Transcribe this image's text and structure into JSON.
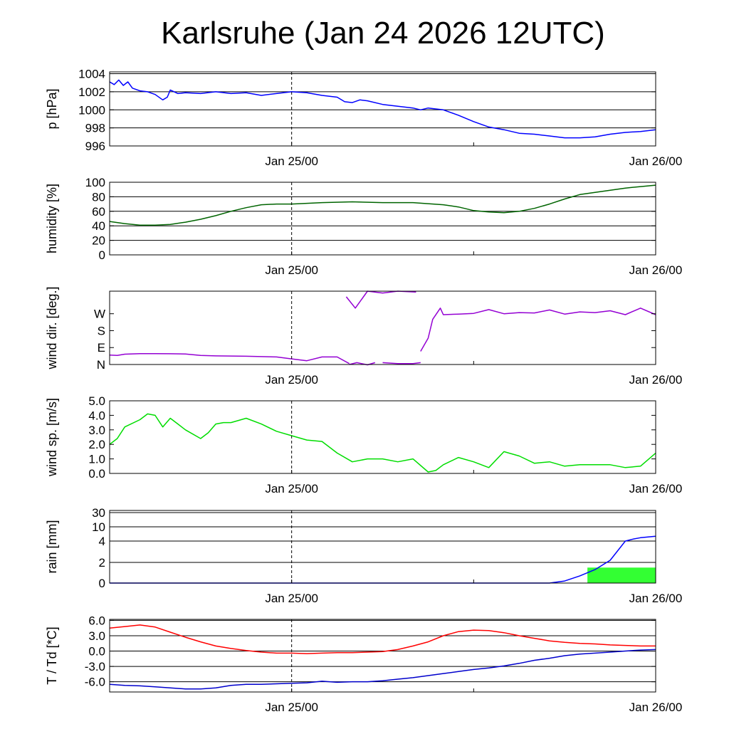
{
  "title": "Karlsruhe (Jan 24 2026 12UTC)",
  "chart_data": [
    {
      "type": "line",
      "ylabel": "p [hPa]",
      "x_tick_labels": [
        "Jan 25/00",
        "Jan 26/00"
      ],
      "xlim_hours": [
        0,
        36
      ],
      "ylim": [
        996,
        1004.2
      ],
      "yticks": [
        996,
        998,
        1000,
        1002,
        1004
      ],
      "ytick_labels": [
        "996",
        "998",
        "1000",
        "1002",
        "1004"
      ],
      "grid": true,
      "color": "#0000ff",
      "series": [
        {
          "x": [
            0,
            0.3,
            0.6,
            0.9,
            1.2,
            1.5,
            2,
            2.5,
            3,
            3.5,
            3.8,
            4,
            4.5,
            5,
            6,
            7,
            8,
            9,
            10,
            11,
            12,
            13,
            14,
            15,
            15.5,
            16,
            16.5,
            17,
            18,
            19,
            20,
            20.5,
            21,
            22,
            23,
            24,
            25,
            26,
            27,
            28,
            29,
            30,
            31,
            32,
            33,
            34,
            35,
            36
          ],
          "y": [
            1003.1,
            1002.8,
            1003.3,
            1002.7,
            1003.1,
            1002.4,
            1002.1,
            1002.0,
            1001.7,
            1001.1,
            1001.4,
            1002.2,
            1001.8,
            1001.9,
            1001.8,
            1002.0,
            1001.8,
            1001.9,
            1001.6,
            1001.8,
            1002.0,
            1001.9,
            1001.6,
            1001.4,
            1000.9,
            1000.8,
            1001.1,
            1001.0,
            1000.6,
            1000.4,
            1000.2,
            1000.0,
            1000.2,
            1000.0,
            999.4,
            998.7,
            998.1,
            997.8,
            997.4,
            997.3,
            997.1,
            996.9,
            996.9,
            997.0,
            997.3,
            997.5,
            997.6,
            997.8
          ]
        }
      ]
    },
    {
      "type": "line",
      "ylabel": "humidity [%]",
      "x_tick_labels": [
        "Jan 25/00",
        "Jan 26/00"
      ],
      "xlim_hours": [
        0,
        36
      ],
      "ylim": [
        0,
        100
      ],
      "yticks": [
        0,
        20,
        40,
        60,
        80,
        100
      ],
      "ytick_labels": [
        "0",
        "20",
        "40",
        "60",
        "80",
        "100"
      ],
      "grid": true,
      "color": "#006400",
      "series": [
        {
          "x": [
            0,
            1,
            2,
            3,
            4,
            5,
            6,
            7,
            8,
            9,
            10,
            11,
            12,
            14,
            16,
            18,
            20,
            22,
            23,
            24,
            25,
            26,
            27,
            28,
            29,
            30,
            31,
            32,
            33,
            34,
            35,
            36
          ],
          "y": [
            46,
            43,
            41,
            41,
            42,
            45,
            49,
            54,
            60,
            65,
            69,
            70,
            70,
            72,
            73,
            72,
            72,
            69,
            66,
            61,
            59,
            58,
            60,
            64,
            70,
            77,
            83,
            86,
            89,
            92,
            94,
            96
          ]
        }
      ]
    },
    {
      "type": "scatter",
      "ylabel": "wind dir. [deg.]",
      "x_tick_labels": [
        "Jan 25/00",
        "Jan 26/00"
      ],
      "xlim_hours": [
        0,
        36
      ],
      "ylim": [
        0,
        390
      ],
      "yticks": [
        0,
        90,
        180,
        270
      ],
      "ytick_labels": [
        "N",
        "E",
        "S",
        "W"
      ],
      "grid": false,
      "color": "#9400d3",
      "series": [
        {
          "x": [
            0,
            0.5,
            1,
            2,
            3,
            4,
            5,
            6,
            7,
            8,
            9,
            10,
            11,
            12,
            13,
            14,
            15,
            15.8
          ],
          "y": [
            50,
            48,
            55,
            58,
            58,
            57,
            56,
            48,
            46,
            45,
            44,
            42,
            40,
            30,
            20,
            40,
            40,
            5
          ]
        },
        {
          "x": [
            15.8,
            16.3,
            17,
            17.5
          ],
          "y": [
            0,
            10,
            -2,
            10
          ]
        },
        {
          "x": [
            18,
            19,
            20,
            20.5
          ],
          "y": [
            10,
            5,
            5,
            10
          ]
        },
        {
          "x": [
            15.6,
            16.2,
            17,
            18,
            19,
            20.2
          ],
          "y": [
            360,
            300,
            390,
            380,
            390,
            385
          ]
        },
        {
          "x": [
            20.5,
            21,
            21.3,
            21.8,
            22,
            23,
            24,
            25,
            26,
            27,
            28,
            29,
            30,
            31,
            32,
            33,
            34,
            35,
            36
          ],
          "y": [
            70,
            140,
            240,
            300,
            265,
            268,
            272,
            292,
            270,
            276,
            274,
            290,
            268,
            280,
            276,
            286,
            265,
            300,
            265
          ]
        }
      ]
    },
    {
      "type": "line",
      "ylabel": "wind sp. [m/s]",
      "x_tick_labels": [
        "Jan 25/00",
        "Jan 26/00"
      ],
      "xlim_hours": [
        0,
        36
      ],
      "ylim": [
        0,
        5
      ],
      "yticks": [
        0,
        1,
        2,
        3,
        4,
        5
      ],
      "ytick_labels": [
        "0.0",
        "1.0",
        "2.0",
        "3.0",
        "4.0",
        "5.0"
      ],
      "grid": false,
      "color": "#00dd00",
      "series": [
        {
          "x": [
            0,
            0.5,
            1,
            2,
            2.5,
            3,
            3.5,
            4,
            4.5,
            5,
            6,
            6.5,
            7,
            7.5,
            8,
            9,
            10,
            11,
            12,
            13,
            14,
            15,
            16,
            17,
            18,
            19,
            20,
            21,
            21.5,
            22,
            23,
            24,
            25,
            26,
            27,
            28,
            29,
            30,
            31,
            32,
            33,
            34,
            35,
            36
          ],
          "y": [
            2.0,
            2.4,
            3.2,
            3.7,
            4.1,
            4.0,
            3.2,
            3.8,
            3.4,
            3.0,
            2.4,
            2.8,
            3.4,
            3.5,
            3.5,
            3.8,
            3.4,
            2.9,
            2.6,
            2.3,
            2.2,
            1.4,
            0.8,
            1.0,
            1.0,
            0.8,
            1.0,
            0.1,
            0.2,
            0.6,
            1.1,
            0.8,
            0.4,
            1.5,
            1.2,
            0.7,
            0.8,
            0.5,
            0.6,
            0.6,
            0.6,
            0.4,
            0.5,
            1.4
          ]
        }
      ]
    },
    {
      "type": "line",
      "ylabel": "rain [mm]",
      "x_tick_labels": [
        "Jan 25/00",
        "Jan 26/00"
      ],
      "xlim_hours": [
        0,
        36
      ],
      "ylim": [
        0,
        30
      ],
      "yticks": [
        0,
        2,
        4,
        10,
        30
      ],
      "ytick_labels": [
        "0",
        "2",
        "4",
        "10",
        "30"
      ],
      "grid": true,
      "color": "#0000ff",
      "bar_color": "#33ff33",
      "bars": [
        {
          "x_start": 31.5,
          "x_end": 36,
          "value": 1.5
        }
      ],
      "series": [
        {
          "x": [
            0,
            29,
            30,
            31,
            32,
            33,
            34,
            34.5,
            35,
            36
          ],
          "y": [
            0,
            0,
            0.2,
            0.7,
            1.3,
            2.2,
            4.0,
            4.8,
            5.4,
            6.0
          ]
        }
      ]
    },
    {
      "type": "line",
      "ylabel": "T / Td [*C]",
      "x_tick_labels": [
        "Jan 25/00",
        "Jan 26/00"
      ],
      "xlim_hours": [
        0,
        36
      ],
      "ylim": [
        -8,
        6.2
      ],
      "yticks": [
        -6,
        -3,
        0,
        3,
        6
      ],
      "ytick_labels": [
        "-6.0",
        "-3.0",
        "0.0",
        "3.0",
        "6.0"
      ],
      "grid": true,
      "series": [
        {
          "name": "T",
          "color": "#ff0000",
          "x": [
            0,
            1,
            2,
            3,
            4,
            5,
            6,
            7,
            8,
            9,
            10,
            11,
            12,
            13,
            14,
            15,
            16,
            17,
            18,
            19,
            20,
            21,
            22,
            23,
            24,
            25,
            26,
            27,
            28,
            29,
            30,
            31,
            32,
            33,
            34,
            35,
            36
          ],
          "y": [
            4.5,
            4.8,
            5.1,
            4.7,
            3.7,
            2.7,
            1.8,
            1.0,
            0.5,
            0.1,
            -0.2,
            -0.4,
            -0.4,
            -0.5,
            -0.4,
            -0.3,
            -0.3,
            -0.2,
            -0.1,
            0.3,
            1.0,
            1.8,
            3.0,
            3.8,
            4.1,
            4.0,
            3.6,
            3.0,
            2.5,
            2.0,
            1.7,
            1.5,
            1.4,
            1.2,
            1.1,
            1.0,
            1.0
          ]
        },
        {
          "name": "Td",
          "color": "#0000cc",
          "x": [
            0,
            1,
            2,
            3,
            4,
            5,
            6,
            7,
            8,
            9,
            10,
            11,
            12,
            13,
            14,
            15,
            16,
            17,
            18,
            19,
            20,
            21,
            22,
            23,
            24,
            25,
            26,
            27,
            28,
            29,
            30,
            31,
            32,
            33,
            34,
            35,
            36
          ],
          "y": [
            -6.5,
            -6.7,
            -6.8,
            -7.0,
            -7.2,
            -7.4,
            -7.4,
            -7.2,
            -6.7,
            -6.5,
            -6.5,
            -6.4,
            -6.3,
            -6.2,
            -5.9,
            -6.1,
            -6.0,
            -6.0,
            -5.8,
            -5.5,
            -5.2,
            -4.8,
            -4.4,
            -4.0,
            -3.6,
            -3.3,
            -2.9,
            -2.4,
            -1.8,
            -1.4,
            -0.9,
            -0.6,
            -0.4,
            -0.2,
            0.0,
            0.2,
            0.3
          ]
        }
      ]
    }
  ]
}
